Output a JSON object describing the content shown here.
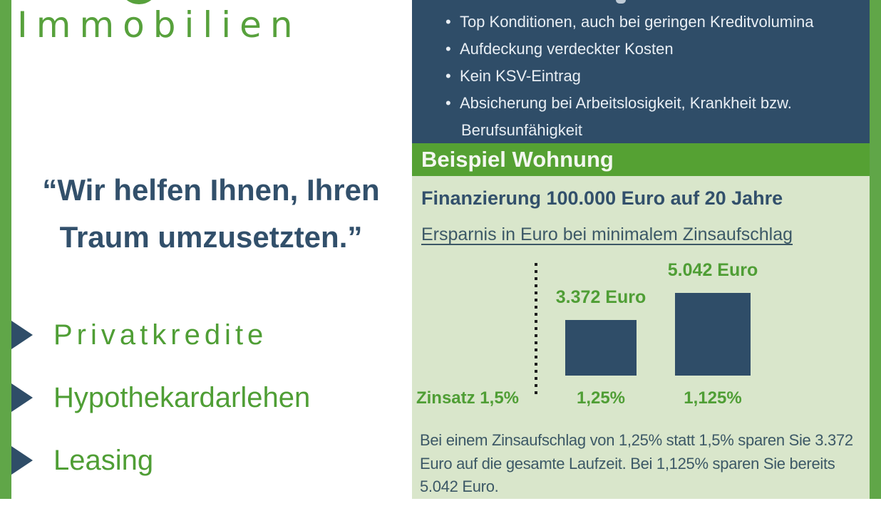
{
  "colors": {
    "navy": "#2f4d68",
    "green_stripe": "#60a648",
    "green_band": "#55a133",
    "green_text": "#4f9e35",
    "logo_green": "#57a13c",
    "light_green_panel": "#d9e6cb",
    "heading_slate": "#32506b",
    "body_slate": "#3c5866",
    "bullet_text": "#e8eef4"
  },
  "left_pane": {
    "logo_text": "Immobilien",
    "quote": "“Wir helfen Ihnen, Ihren Traum umzusetzten.”",
    "services": [
      {
        "label": "Privatkredite"
      },
      {
        "label": "Hypothekardarlehen"
      },
      {
        "label": "Leasing"
      }
    ]
  },
  "right_pane": {
    "benefits": [
      "Top Konditionen, auch bei geringen Kreditvolumina",
      "Aufdeckung verdeckter Kosten",
      "Kein KSV-Eintrag",
      "Absicherung bei Arbeitslosigkeit, Krankheit bzw. Berufsunfähigkeit"
    ],
    "section_title": "Beispiel Wohnung",
    "financing_heading": "Finanzierung 100.000 Euro auf 20 Jahre",
    "chart_caption": "Ersparnis in Euro bei minimalem Zinsaufschlag",
    "body_paragraph": "Bei einem Zinsaufschlag von 1,25% statt 1,5% sparen Sie 3.372 Euro auf die gesamte Laufzeit. Bei 1,125% sparen Sie bereits 5.042 Euro."
  },
  "chart_data": {
    "type": "bar",
    "title": "Ersparnis in Euro bei minimalem Zinsaufschlag",
    "baseline": {
      "label": "Zinsatz 1,5%",
      "value": 0,
      "marker": "dotted-vertical-line"
    },
    "categories": [
      "1,25%",
      "1,125%"
    ],
    "values": [
      3372,
      5042
    ],
    "value_labels": [
      "3.372 Euro",
      "5.042 Euro"
    ],
    "unit": "Euro",
    "ylim": [
      0,
      5042
    ],
    "bar_color": "#2f4d68",
    "label_color": "#4f9e35",
    "legend": "none",
    "grid": false
  }
}
